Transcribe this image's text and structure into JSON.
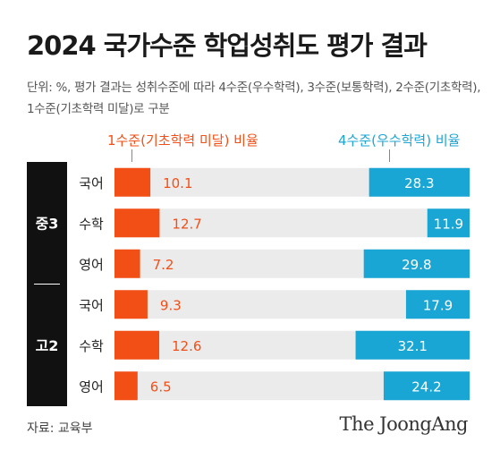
{
  "title": "2024 국가수준 학업성취도 평가 결과",
  "subtitle": "단위: %, 평가 결과는 성취수준에 따라 4수준(우수학력), 3수준(보통학력), 2수준(기초학력), 1수준(기초학력 미달)로 구분",
  "legend": {
    "low": "1수준(기초학력 미달) 비율",
    "high": "4수준(우수학력) 비율"
  },
  "colors": {
    "low": "#f24f17",
    "high": "#1aa6d4",
    "track": "#ebebeb",
    "group_bg": "#111111"
  },
  "source": "자료: 교육부",
  "brand": "The JoongAng",
  "chart_data": {
    "type": "bar",
    "groups": [
      "중3",
      "고2"
    ],
    "categories": [
      "국어",
      "수학",
      "영어",
      "국어",
      "수학",
      "영어"
    ],
    "category_groups": [
      "중3",
      "중3",
      "중3",
      "고2",
      "고2",
      "고2"
    ],
    "series": [
      {
        "name": "1수준(기초학력 미달) 비율",
        "values": [
          10.1,
          12.7,
          7.2,
          9.3,
          12.6,
          6.5
        ]
      },
      {
        "name": "4수준(우수학력) 비율",
        "values": [
          28.3,
          11.9,
          29.8,
          17.9,
          32.1,
          24.2
        ]
      }
    ],
    "ylim": [
      0,
      100
    ]
  }
}
